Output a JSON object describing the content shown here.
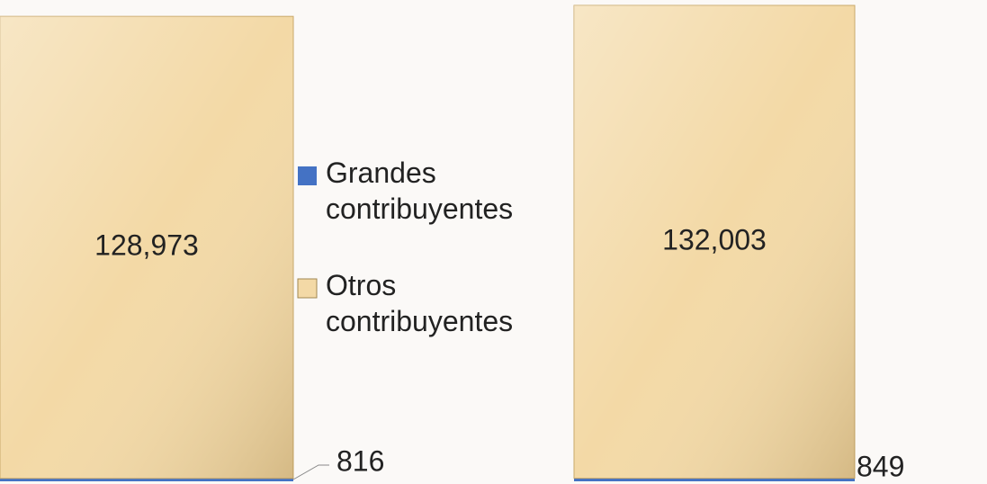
{
  "chart_data": {
    "type": "stacked_bar",
    "categories": [
      null,
      null
    ],
    "series": [
      {
        "name": "Grandes contribuyentes",
        "color": "#4472c4",
        "values": [
          816,
          849
        ],
        "value_labels": [
          "816",
          "849"
        ]
      },
      {
        "name": "Otros contribuyentes",
        "color": "#f3d9a6",
        "values": [
          128973,
          132003
        ],
        "value_labels": [
          "128,973",
          "132,003"
        ]
      }
    ]
  }
}
